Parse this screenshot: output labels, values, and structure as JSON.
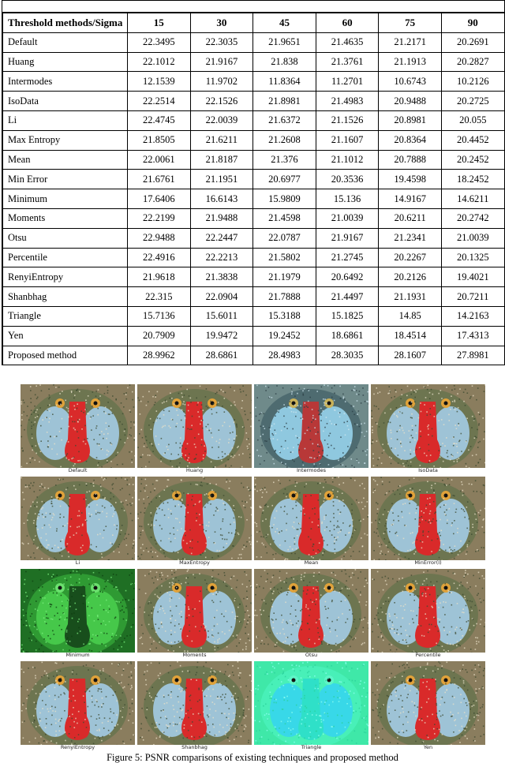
{
  "table": {
    "header": [
      "Threshold methods/Sigma",
      "15",
      "30",
      "45",
      "60",
      "75",
      "90"
    ],
    "rows": [
      {
        "method": "Default",
        "values": [
          "22.3495",
          "22.3035",
          "21.9651",
          "21.4635",
          "21.2171",
          "20.2691"
        ]
      },
      {
        "method": "Huang",
        "values": [
          "22.1012",
          "21.9167",
          "21.838",
          "21.3761",
          "21.1913",
          "20.2827"
        ]
      },
      {
        "method": "Intermodes",
        "values": [
          "12.1539",
          "11.9702",
          "11.8364",
          "11.2701",
          "10.6743",
          "10.2126"
        ]
      },
      {
        "method": "IsoData",
        "values": [
          "22.2514",
          "22.1526",
          "21.8981",
          "21.4983",
          "20.9488",
          "20.2725"
        ]
      },
      {
        "method": "Li",
        "values": [
          "22.4745",
          "22.0039",
          "21.6372",
          "21.1526",
          "20.8981",
          "20.055"
        ]
      },
      {
        "method": "Max Entropy",
        "values": [
          "21.8505",
          "21.6211",
          "21.2608",
          "21.1607",
          "20.8364",
          "20.4452"
        ]
      },
      {
        "method": "Mean",
        "values": [
          "22.0061",
          "21.8187",
          "21.376",
          "21.1012",
          "20.7888",
          "20.2452"
        ]
      },
      {
        "method": "Min Error",
        "values": [
          "21.6761",
          "21.1951",
          "20.6977",
          "20.3536",
          "19.4598",
          "18.2452"
        ]
      },
      {
        "method": "Minimum",
        "values": [
          "17.6406",
          "16.6143",
          "15.9809",
          "15.136",
          "14.9167",
          "14.6211"
        ]
      },
      {
        "method": "Moments",
        "values": [
          "22.2199",
          "21.9488",
          "21.4598",
          "21.0039",
          "20.6211",
          "20.2742"
        ]
      },
      {
        "method": "Otsu",
        "values": [
          "22.9488",
          "22.2447",
          "22.0787",
          "21.9167",
          "21.2341",
          "21.0039"
        ]
      },
      {
        "method": "Percentile",
        "values": [
          "22.4916",
          "22.2213",
          "21.5802",
          "21.2745",
          "20.2267",
          "20.1325"
        ]
      },
      {
        "method": "RenyiEntropy",
        "values": [
          "21.9618",
          "21.3838",
          "21.1979",
          "20.6492",
          "20.2126",
          "19.4021"
        ]
      },
      {
        "method": "Shanbhag",
        "values": [
          "22.315",
          "22.0904",
          "21.7888",
          "21.4497",
          "21.1931",
          "20.7211"
        ]
      },
      {
        "method": "Triangle",
        "values": [
          "15.7136",
          "15.6011",
          "15.3188",
          "15.1825",
          "14.85",
          "14.2163"
        ]
      },
      {
        "method": "Yen",
        "values": [
          "20.7909",
          "19.9472",
          "19.2452",
          "18.6861",
          "18.4514",
          "17.4313"
        ]
      },
      {
        "method": "Proposed method",
        "values": [
          "28.9962",
          "28.6861",
          "28.4983",
          "28.3035",
          "28.1607",
          "27.8981"
        ]
      }
    ]
  },
  "figure": {
    "images": [
      {
        "label": "Default",
        "variant": "color"
      },
      {
        "label": "Huang",
        "variant": "color"
      },
      {
        "label": "Intermodes",
        "variant": "bluish"
      },
      {
        "label": "IsoData",
        "variant": "color"
      },
      {
        "label": "Li",
        "variant": "color"
      },
      {
        "label": "MaxEntropy",
        "variant": "color"
      },
      {
        "label": "Mean",
        "variant": "color"
      },
      {
        "label": "MinError(I)",
        "variant": "color"
      },
      {
        "label": "Minimum",
        "variant": "green"
      },
      {
        "label": "Moments",
        "variant": "color"
      },
      {
        "label": "Otsu",
        "variant": "color"
      },
      {
        "label": "Percentile",
        "variant": "color"
      },
      {
        "label": "RenyiEntropy",
        "variant": "color"
      },
      {
        "label": "Shanbhag",
        "variant": "color"
      },
      {
        "label": "Triangle",
        "variant": "cyan"
      },
      {
        "label": "Yen",
        "variant": "color"
      }
    ],
    "caption": "Figure 5: PSNR comparisons of existing techniques and proposed method"
  }
}
